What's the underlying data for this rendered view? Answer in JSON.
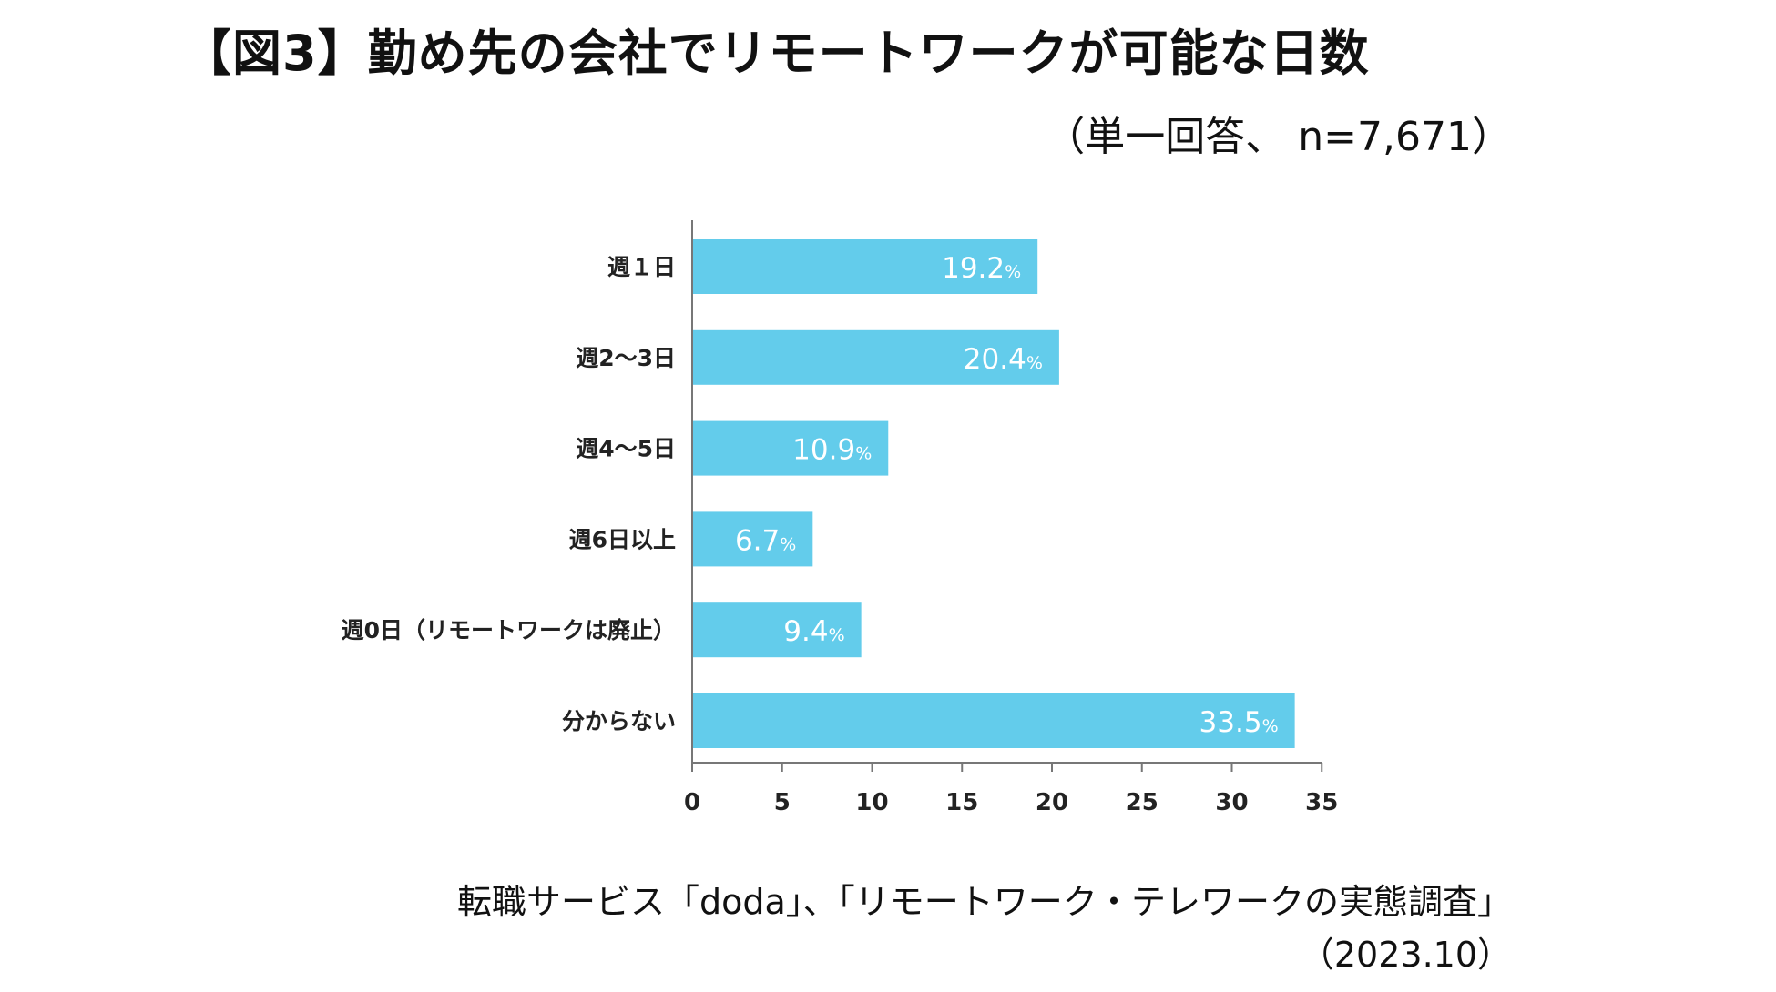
{
  "title": "【図3】勤め先の会社でリモートワークが可能な日数",
  "subtitle": "（単一回答、 n=7,671）",
  "chart_data": {
    "type": "bar",
    "orientation": "horizontal",
    "categories": [
      "週１日",
      "週2～3日",
      "週4～5日",
      "週6日以上",
      "週0日（リモートワークは廃止）",
      "分からない"
    ],
    "values": [
      19.2,
      20.4,
      10.9,
      6.7,
      9.4,
      33.5
    ],
    "value_labels": [
      "19.2",
      "20.4",
      "10.9",
      "6.7",
      "9.4",
      "33.5"
    ],
    "value_unit": "%",
    "xticks": [
      0,
      5,
      10,
      15,
      20,
      25,
      30,
      35
    ],
    "xlim": [
      0,
      35
    ],
    "bar_color": "#63CCEB",
    "label_color": "#ffffff",
    "grid": false
  },
  "source": {
    "line1": "転職サービス「doda」、「リモートワーク・テレワークの実態調査」",
    "line2": "（2023.10）"
  }
}
